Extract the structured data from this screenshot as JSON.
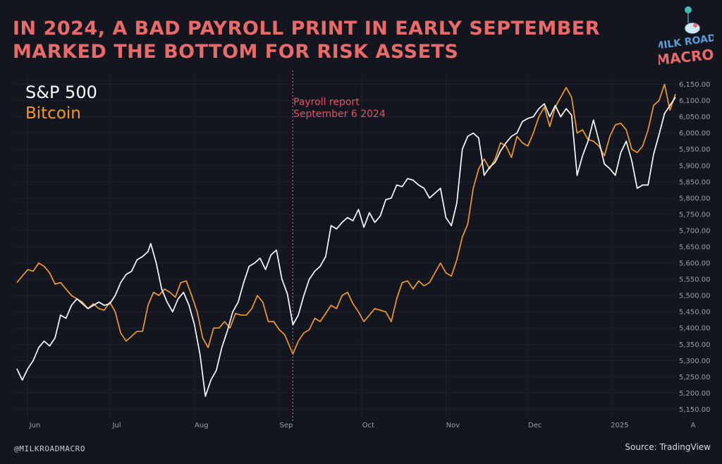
{
  "title_line1": "IN 2024, A BAD PAYROLL PRINT IN EARLY SEPTEMBER",
  "title_line2": "MARKED THE BOTTOM FOR RISK ASSETS",
  "logo": {
    "text_line1": "MILK ROAD",
    "text_line2": "MACRO"
  },
  "annotation_line1": "Payroll report",
  "annotation_line2": "September 6 2024",
  "footer_handle": "@MILKROADMACRO",
  "footer_source": "Source: TradingView",
  "axis_corner_label": "A",
  "colors": {
    "background": "#13161f",
    "title": "#e96a68",
    "sp500": "#ffffff",
    "bitcoin": "#f29a27",
    "annotation": "#e2546a",
    "grid": "#1f2330"
  },
  "chart_data": {
    "type": "line",
    "title": "IN 2024, A BAD PAYROLL PRINT IN EARLY SEPTEMBER MARKED THE BOTTOM FOR RISK ASSETS",
    "xlabel": "",
    "ylabel": "",
    "x_range": [
      "2024-05-27",
      "2025-01-24"
    ],
    "ylim": [
      5125,
      6175
    ],
    "y_ticks": [
      5150,
      5200,
      5250,
      5300,
      5350,
      5400,
      5450,
      5500,
      5550,
      5600,
      5650,
      5700,
      5750,
      5800,
      5850,
      5900,
      5950,
      6000,
      6050,
      6100,
      6150
    ],
    "y_tick_labels": [
      "5,150.00",
      "5,200.00",
      "5,250.00",
      "5,300.00",
      "5,350.00",
      "5,400.00",
      "5,450.00",
      "5,500.00",
      "5,550.00",
      "5,600.00",
      "5,650.00",
      "5,700.00",
      "5,750.00",
      "5,800.00",
      "5,850.00",
      "5,900.00",
      "5,950.00",
      "6,000.00",
      "6,050.00",
      "6,100.00",
      "6,150.00"
    ],
    "x_ticks": [
      {
        "label": "Jun",
        "date": "2024-06-01"
      },
      {
        "label": "Jul",
        "date": "2024-07-01"
      },
      {
        "label": "Aug",
        "date": "2024-08-01"
      },
      {
        "label": "Sep",
        "date": "2024-09-01"
      },
      {
        "label": "Oct",
        "date": "2024-10-01"
      },
      {
        "label": "Nov",
        "date": "2024-11-01"
      },
      {
        "label": "Dec",
        "date": "2024-12-01"
      },
      {
        "label": "2025",
        "date": "2025-01-01"
      }
    ],
    "grid": true,
    "legend_position": "top-left",
    "vline": {
      "date": "2024-09-06"
    },
    "series": [
      {
        "name": "S&P 500",
        "color": "#ffffff",
        "points": [
          [
            "2024-05-28",
            5275
          ],
          [
            "2024-05-30",
            5240
          ],
          [
            "2024-06-01",
            5275
          ],
          [
            "2024-06-03",
            5300
          ],
          [
            "2024-06-05",
            5340
          ],
          [
            "2024-06-07",
            5360
          ],
          [
            "2024-06-09",
            5345
          ],
          [
            "2024-06-11",
            5370
          ],
          [
            "2024-06-13",
            5440
          ],
          [
            "2024-06-15",
            5430
          ],
          [
            "2024-06-17",
            5470
          ],
          [
            "2024-06-19",
            5490
          ],
          [
            "2024-06-21",
            5475
          ],
          [
            "2024-06-23",
            5460
          ],
          [
            "2024-06-25",
            5470
          ],
          [
            "2024-06-27",
            5480
          ],
          [
            "2024-06-29",
            5470
          ],
          [
            "2024-07-01",
            5475
          ],
          [
            "2024-07-03",
            5500
          ],
          [
            "2024-07-05",
            5540
          ],
          [
            "2024-07-07",
            5565
          ],
          [
            "2024-07-09",
            5575
          ],
          [
            "2024-07-11",
            5610
          ],
          [
            "2024-07-13",
            5620
          ],
          [
            "2024-07-15",
            5635
          ],
          [
            "2024-07-16",
            5660
          ],
          [
            "2024-07-18",
            5600
          ],
          [
            "2024-07-20",
            5520
          ],
          [
            "2024-07-22",
            5480
          ],
          [
            "2024-07-24",
            5450
          ],
          [
            "2024-07-26",
            5490
          ],
          [
            "2024-07-28",
            5510
          ],
          [
            "2024-07-30",
            5470
          ],
          [
            "2024-08-01",
            5410
          ],
          [
            "2024-08-03",
            5320
          ],
          [
            "2024-08-05",
            5190
          ],
          [
            "2024-08-07",
            5240
          ],
          [
            "2024-08-09",
            5270
          ],
          [
            "2024-08-11",
            5340
          ],
          [
            "2024-08-13",
            5390
          ],
          [
            "2024-08-15",
            5450
          ],
          [
            "2024-08-17",
            5480
          ],
          [
            "2024-08-19",
            5540
          ],
          [
            "2024-08-21",
            5590
          ],
          [
            "2024-08-23",
            5600
          ],
          [
            "2024-08-25",
            5615
          ],
          [
            "2024-08-27",
            5580
          ],
          [
            "2024-08-29",
            5625
          ],
          [
            "2024-08-31",
            5640
          ],
          [
            "2024-09-02",
            5550
          ],
          [
            "2024-09-04",
            5505
          ],
          [
            "2024-09-06",
            5410
          ],
          [
            "2024-09-08",
            5440
          ],
          [
            "2024-09-10",
            5500
          ],
          [
            "2024-09-12",
            5550
          ],
          [
            "2024-09-14",
            5575
          ],
          [
            "2024-09-16",
            5590
          ],
          [
            "2024-09-18",
            5620
          ],
          [
            "2024-09-20",
            5715
          ],
          [
            "2024-09-22",
            5705
          ],
          [
            "2024-09-24",
            5725
          ],
          [
            "2024-09-26",
            5740
          ],
          [
            "2024-09-28",
            5730
          ],
          [
            "2024-09-30",
            5765
          ],
          [
            "2024-10-02",
            5710
          ],
          [
            "2024-10-04",
            5755
          ],
          [
            "2024-10-06",
            5725
          ],
          [
            "2024-10-08",
            5745
          ],
          [
            "2024-10-10",
            5795
          ],
          [
            "2024-10-12",
            5800
          ],
          [
            "2024-10-14",
            5840
          ],
          [
            "2024-10-16",
            5835
          ],
          [
            "2024-10-18",
            5860
          ],
          [
            "2024-10-20",
            5855
          ],
          [
            "2024-10-22",
            5840
          ],
          [
            "2024-10-24",
            5830
          ],
          [
            "2024-10-26",
            5800
          ],
          [
            "2024-10-28",
            5815
          ],
          [
            "2024-10-30",
            5830
          ],
          [
            "2024-11-01",
            5740
          ],
          [
            "2024-11-03",
            5715
          ],
          [
            "2024-11-05",
            5785
          ],
          [
            "2024-11-07",
            5950
          ],
          [
            "2024-11-09",
            5990
          ],
          [
            "2024-11-11",
            6000
          ],
          [
            "2024-11-13",
            5985
          ],
          [
            "2024-11-15",
            5870
          ],
          [
            "2024-11-17",
            5895
          ],
          [
            "2024-11-19",
            5910
          ],
          [
            "2024-11-21",
            5945
          ],
          [
            "2024-11-23",
            5970
          ],
          [
            "2024-11-25",
            5990
          ],
          [
            "2024-11-27",
            6000
          ],
          [
            "2024-11-29",
            6035
          ],
          [
            "2024-12-01",
            6045
          ],
          [
            "2024-12-03",
            6050
          ],
          [
            "2024-12-05",
            6075
          ],
          [
            "2024-12-07",
            6090
          ],
          [
            "2024-12-09",
            6050
          ],
          [
            "2024-12-11",
            6085
          ],
          [
            "2024-12-13",
            6050
          ],
          [
            "2024-12-15",
            6075
          ],
          [
            "2024-12-17",
            6055
          ],
          [
            "2024-12-19",
            5870
          ],
          [
            "2024-12-21",
            5930
          ],
          [
            "2024-12-23",
            5975
          ],
          [
            "2024-12-25",
            6040
          ],
          [
            "2024-12-27",
            5975
          ],
          [
            "2024-12-29",
            5905
          ],
          [
            "2024-12-31",
            5890
          ],
          [
            "2025-01-02",
            5870
          ],
          [
            "2025-01-04",
            5940
          ],
          [
            "2025-01-06",
            5975
          ],
          [
            "2025-01-08",
            5915
          ],
          [
            "2025-01-10",
            5830
          ],
          [
            "2025-01-12",
            5840
          ],
          [
            "2025-01-14",
            5840
          ],
          [
            "2025-01-16",
            5935
          ],
          [
            "2025-01-18",
            5995
          ],
          [
            "2025-01-20",
            6060
          ],
          [
            "2025-01-22",
            6085
          ],
          [
            "2025-01-24",
            6110
          ]
        ]
      },
      {
        "name": "Bitcoin",
        "color": "#f29a27",
        "points": [
          [
            "2024-05-28",
            5540
          ],
          [
            "2024-05-30",
            5560
          ],
          [
            "2024-06-01",
            5580
          ],
          [
            "2024-06-03",
            5575
          ],
          [
            "2024-06-05",
            5600
          ],
          [
            "2024-06-07",
            5590
          ],
          [
            "2024-06-09",
            5570
          ],
          [
            "2024-06-11",
            5535
          ],
          [
            "2024-06-13",
            5540
          ],
          [
            "2024-06-15",
            5520
          ],
          [
            "2024-06-17",
            5500
          ],
          [
            "2024-06-19",
            5490
          ],
          [
            "2024-06-21",
            5480
          ],
          [
            "2024-06-23",
            5460
          ],
          [
            "2024-06-25",
            5475
          ],
          [
            "2024-06-27",
            5460
          ],
          [
            "2024-06-29",
            5455
          ],
          [
            "2024-07-01",
            5480
          ],
          [
            "2024-07-03",
            5450
          ],
          [
            "2024-07-05",
            5385
          ],
          [
            "2024-07-07",
            5360
          ],
          [
            "2024-07-09",
            5375
          ],
          [
            "2024-07-11",
            5390
          ],
          [
            "2024-07-13",
            5390
          ],
          [
            "2024-07-15",
            5470
          ],
          [
            "2024-07-17",
            5510
          ],
          [
            "2024-07-19",
            5500
          ],
          [
            "2024-07-21",
            5520
          ],
          [
            "2024-07-23",
            5510
          ],
          [
            "2024-07-25",
            5495
          ],
          [
            "2024-07-27",
            5540
          ],
          [
            "2024-07-29",
            5545
          ],
          [
            "2024-07-31",
            5500
          ],
          [
            "2024-08-02",
            5450
          ],
          [
            "2024-08-04",
            5370
          ],
          [
            "2024-08-06",
            5340
          ],
          [
            "2024-08-08",
            5400
          ],
          [
            "2024-08-10",
            5400
          ],
          [
            "2024-08-12",
            5420
          ],
          [
            "2024-08-14",
            5400
          ],
          [
            "2024-08-16",
            5445
          ],
          [
            "2024-08-18",
            5440
          ],
          [
            "2024-08-20",
            5440
          ],
          [
            "2024-08-22",
            5460
          ],
          [
            "2024-08-24",
            5500
          ],
          [
            "2024-08-26",
            5480
          ],
          [
            "2024-08-28",
            5420
          ],
          [
            "2024-08-30",
            5420
          ],
          [
            "2024-09-01",
            5395
          ],
          [
            "2024-09-03",
            5380
          ],
          [
            "2024-09-05",
            5340
          ],
          [
            "2024-09-06",
            5320
          ],
          [
            "2024-09-08",
            5360
          ],
          [
            "2024-09-10",
            5385
          ],
          [
            "2024-09-12",
            5395
          ],
          [
            "2024-09-14",
            5430
          ],
          [
            "2024-09-16",
            5420
          ],
          [
            "2024-09-18",
            5445
          ],
          [
            "2024-09-20",
            5470
          ],
          [
            "2024-09-22",
            5460
          ],
          [
            "2024-09-24",
            5500
          ],
          [
            "2024-09-26",
            5510
          ],
          [
            "2024-09-28",
            5475
          ],
          [
            "2024-09-30",
            5450
          ],
          [
            "2024-10-02",
            5420
          ],
          [
            "2024-10-04",
            5440
          ],
          [
            "2024-10-06",
            5460
          ],
          [
            "2024-10-08",
            5455
          ],
          [
            "2024-10-10",
            5450
          ],
          [
            "2024-10-12",
            5420
          ],
          [
            "2024-10-14",
            5490
          ],
          [
            "2024-10-16",
            5540
          ],
          [
            "2024-10-18",
            5545
          ],
          [
            "2024-10-20",
            5520
          ],
          [
            "2024-10-22",
            5545
          ],
          [
            "2024-10-24",
            5530
          ],
          [
            "2024-10-26",
            5540
          ],
          [
            "2024-10-28",
            5570
          ],
          [
            "2024-10-30",
            5600
          ],
          [
            "2024-11-01",
            5570
          ],
          [
            "2024-11-03",
            5560
          ],
          [
            "2024-11-05",
            5610
          ],
          [
            "2024-11-07",
            5680
          ],
          [
            "2024-11-09",
            5720
          ],
          [
            "2024-11-11",
            5830
          ],
          [
            "2024-11-13",
            5890
          ],
          [
            "2024-11-15",
            5920
          ],
          [
            "2024-11-17",
            5890
          ],
          [
            "2024-11-19",
            5920
          ],
          [
            "2024-11-21",
            5970
          ],
          [
            "2024-11-23",
            5960
          ],
          [
            "2024-11-25",
            5925
          ],
          [
            "2024-11-27",
            5990
          ],
          [
            "2024-11-29",
            5970
          ],
          [
            "2024-12-01",
            5960
          ],
          [
            "2024-12-03",
            6000
          ],
          [
            "2024-12-05",
            6050
          ],
          [
            "2024-12-07",
            6080
          ],
          [
            "2024-12-09",
            6020
          ],
          [
            "2024-12-11",
            6080
          ],
          [
            "2024-12-13",
            6110
          ],
          [
            "2024-12-15",
            6140
          ],
          [
            "2024-12-17",
            6110
          ],
          [
            "2024-12-19",
            6000
          ],
          [
            "2024-12-21",
            6010
          ],
          [
            "2024-12-23",
            5980
          ],
          [
            "2024-12-25",
            5975
          ],
          [
            "2024-12-27",
            5960
          ],
          [
            "2024-12-29",
            5930
          ],
          [
            "2024-12-31",
            5990
          ],
          [
            "2025-01-02",
            6025
          ],
          [
            "2025-01-04",
            6030
          ],
          [
            "2025-01-06",
            6010
          ],
          [
            "2025-01-08",
            5950
          ],
          [
            "2025-01-10",
            5940
          ],
          [
            "2025-01-12",
            5960
          ],
          [
            "2025-01-14",
            6010
          ],
          [
            "2025-01-16",
            6085
          ],
          [
            "2025-01-18",
            6100
          ],
          [
            "2025-01-20",
            6150
          ],
          [
            "2025-01-22",
            6070
          ],
          [
            "2025-01-24",
            6120
          ]
        ]
      }
    ]
  }
}
